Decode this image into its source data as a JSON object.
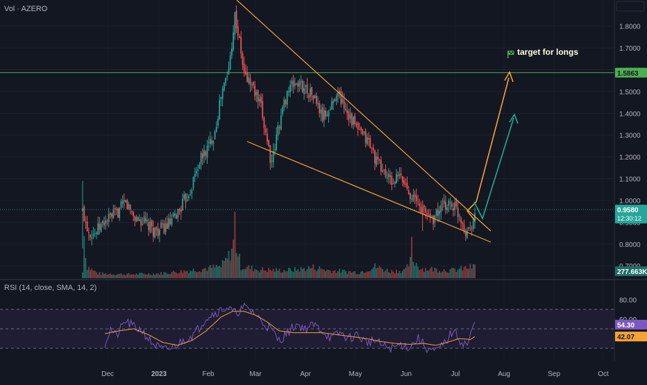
{
  "volume_label": "Vol · AZERO",
  "rsi_label": "RSI (14, close, SMA, 14, 2)",
  "annotation": "target for longs",
  "colors": {
    "background": "#131722",
    "up": "#26a69a",
    "down": "#ef5350",
    "wedge": "#f7a234",
    "arrow_primary": "#f7a234",
    "arrow_secondary": "#22ab94",
    "target_line": "#4caf50",
    "rsi_line": "#7e57c2",
    "rsi_ma": "#f7a234",
    "rsi_band": "#2a2242"
  },
  "chart_data": [
    {
      "type": "candlestick",
      "price_axis": {
        "ticks": [
          "1.8000",
          "1.7000",
          "1.6000",
          "1.5000",
          "1.4000",
          "1.3000",
          "1.2000",
          "1.1000",
          "1.0000",
          "0.9000",
          "0.8000",
          "0.7000"
        ],
        "ylim": [
          0.64,
          1.92
        ]
      },
      "time_axis": {
        "ticks": [
          "Dec",
          "2023",
          "Feb",
          "Mar",
          "Apr",
          "May",
          "Jun",
          "Jul",
          "Aug",
          "Sep",
          "Oct"
        ]
      },
      "price_keypoints": [
        [
          0,
          0.95
        ],
        [
          4,
          0.86
        ],
        [
          8,
          0.85
        ],
        [
          14,
          0.9
        ],
        [
          22,
          0.94
        ],
        [
          28,
          0.99
        ],
        [
          34,
          0.92
        ],
        [
          40,
          0.9
        ],
        [
          46,
          0.86
        ],
        [
          52,
          0.87
        ],
        [
          58,
          0.9
        ],
        [
          64,
          0.97
        ],
        [
          70,
          1.05
        ],
        [
          76,
          1.18
        ],
        [
          82,
          1.25
        ],
        [
          86,
          1.32
        ],
        [
          90,
          1.48
        ],
        [
          95,
          1.6
        ],
        [
          99,
          1.85
        ],
        [
          101,
          1.77
        ],
        [
          105,
          1.58
        ],
        [
          110,
          1.53
        ],
        [
          116,
          1.42
        ],
        [
          120,
          1.28
        ],
        [
          123,
          1.16
        ],
        [
          127,
          1.33
        ],
        [
          133,
          1.5
        ],
        [
          138,
          1.54
        ],
        [
          144,
          1.52
        ],
        [
          150,
          1.48
        ],
        [
          156,
          1.38
        ],
        [
          161,
          1.42
        ],
        [
          165,
          1.5
        ],
        [
          170,
          1.44
        ],
        [
          175,
          1.37
        ],
        [
          180,
          1.31
        ],
        [
          186,
          1.27
        ],
        [
          191,
          1.18
        ],
        [
          196,
          1.13
        ],
        [
          201,
          1.08
        ],
        [
          206,
          1.11
        ],
        [
          211,
          1.06
        ],
        [
          216,
          1.0
        ],
        [
          222,
          0.95
        ],
        [
          228,
          0.92
        ],
        [
          233,
          0.96
        ],
        [
          238,
          0.99
        ],
        [
          242,
          0.97
        ],
        [
          246,
          0.92
        ],
        [
          249,
          0.86
        ],
        [
          252,
          0.88
        ],
        [
          255,
          0.93
        ]
      ],
      "current_price": "0.9580",
      "countdown": "12:30:12",
      "target_price": "1.5863",
      "current_volume": "277.663K",
      "volume_keypoints": [
        [
          0,
          0.15
        ],
        [
          1,
          0.78
        ],
        [
          3,
          0.3
        ],
        [
          10,
          0.12
        ],
        [
          30,
          0.1
        ],
        [
          50,
          0.12
        ],
        [
          70,
          0.2
        ],
        [
          80,
          0.25
        ],
        [
          90,
          0.3
        ],
        [
          95,
          0.55
        ],
        [
          99,
          1.0
        ],
        [
          103,
          0.3
        ],
        [
          115,
          0.22
        ],
        [
          130,
          0.2
        ],
        [
          140,
          0.22
        ],
        [
          150,
          0.28
        ],
        [
          160,
          0.2
        ],
        [
          180,
          0.15
        ],
        [
          190,
          0.3
        ],
        [
          200,
          0.18
        ],
        [
          210,
          0.2
        ],
        [
          214,
          0.5
        ],
        [
          220,
          0.25
        ],
        [
          240,
          0.2
        ],
        [
          255,
          0.3
        ]
      ]
    },
    {
      "type": "line",
      "name": "RSI",
      "axis_ticks": [
        "80.00",
        "60.00"
      ],
      "ylim": [
        20,
        80
      ],
      "rsi_value": "54.30",
      "rsi_ma_value": "42.07",
      "rsi_keypoints": [
        [
          0,
          35
        ],
        [
          4,
          50
        ],
        [
          8,
          42
        ],
        [
          14,
          58
        ],
        [
          20,
          52
        ],
        [
          26,
          48
        ],
        [
          32,
          36
        ],
        [
          40,
          28
        ],
        [
          46,
          30
        ],
        [
          54,
          38
        ],
        [
          62,
          45
        ],
        [
          70,
          62
        ],
        [
          78,
          68
        ],
        [
          84,
          72
        ],
        [
          90,
          66
        ],
        [
          96,
          72
        ],
        [
          102,
          68
        ],
        [
          108,
          58
        ],
        [
          114,
          50
        ],
        [
          120,
          38
        ],
        [
          126,
          46
        ],
        [
          132,
          55
        ],
        [
          138,
          50
        ],
        [
          144,
          54
        ],
        [
          150,
          48
        ],
        [
          156,
          40
        ],
        [
          162,
          46
        ],
        [
          168,
          40
        ],
        [
          174,
          44
        ],
        [
          180,
          36
        ],
        [
          186,
          38
        ],
        [
          192,
          32
        ],
        [
          198,
          30
        ],
        [
          204,
          34
        ],
        [
          210,
          31
        ],
        [
          216,
          40
        ],
        [
          222,
          30
        ],
        [
          228,
          26
        ],
        [
          234,
          35
        ],
        [
          240,
          48
        ],
        [
          246,
          36
        ],
        [
          250,
          34
        ],
        [
          255,
          56
        ]
      ],
      "rsi_ma_keypoints": [
        [
          0,
          45
        ],
        [
          10,
          48
        ],
        [
          20,
          50
        ],
        [
          30,
          44
        ],
        [
          40,
          36
        ],
        [
          50,
          33
        ],
        [
          60,
          38
        ],
        [
          70,
          48
        ],
        [
          80,
          62
        ],
        [
          88,
          68
        ],
        [
          96,
          68
        ],
        [
          104,
          64
        ],
        [
          112,
          57
        ],
        [
          120,
          48
        ],
        [
          130,
          46
        ],
        [
          140,
          46
        ],
        [
          150,
          46
        ],
        [
          160,
          44
        ],
        [
          170,
          42
        ],
        [
          180,
          40
        ],
        [
          190,
          37
        ],
        [
          200,
          35
        ],
        [
          210,
          34
        ],
        [
          220,
          35
        ],
        [
          228,
          33
        ],
        [
          236,
          36
        ],
        [
          244,
          40
        ],
        [
          252,
          39
        ],
        [
          255,
          42
        ]
      ]
    }
  ]
}
